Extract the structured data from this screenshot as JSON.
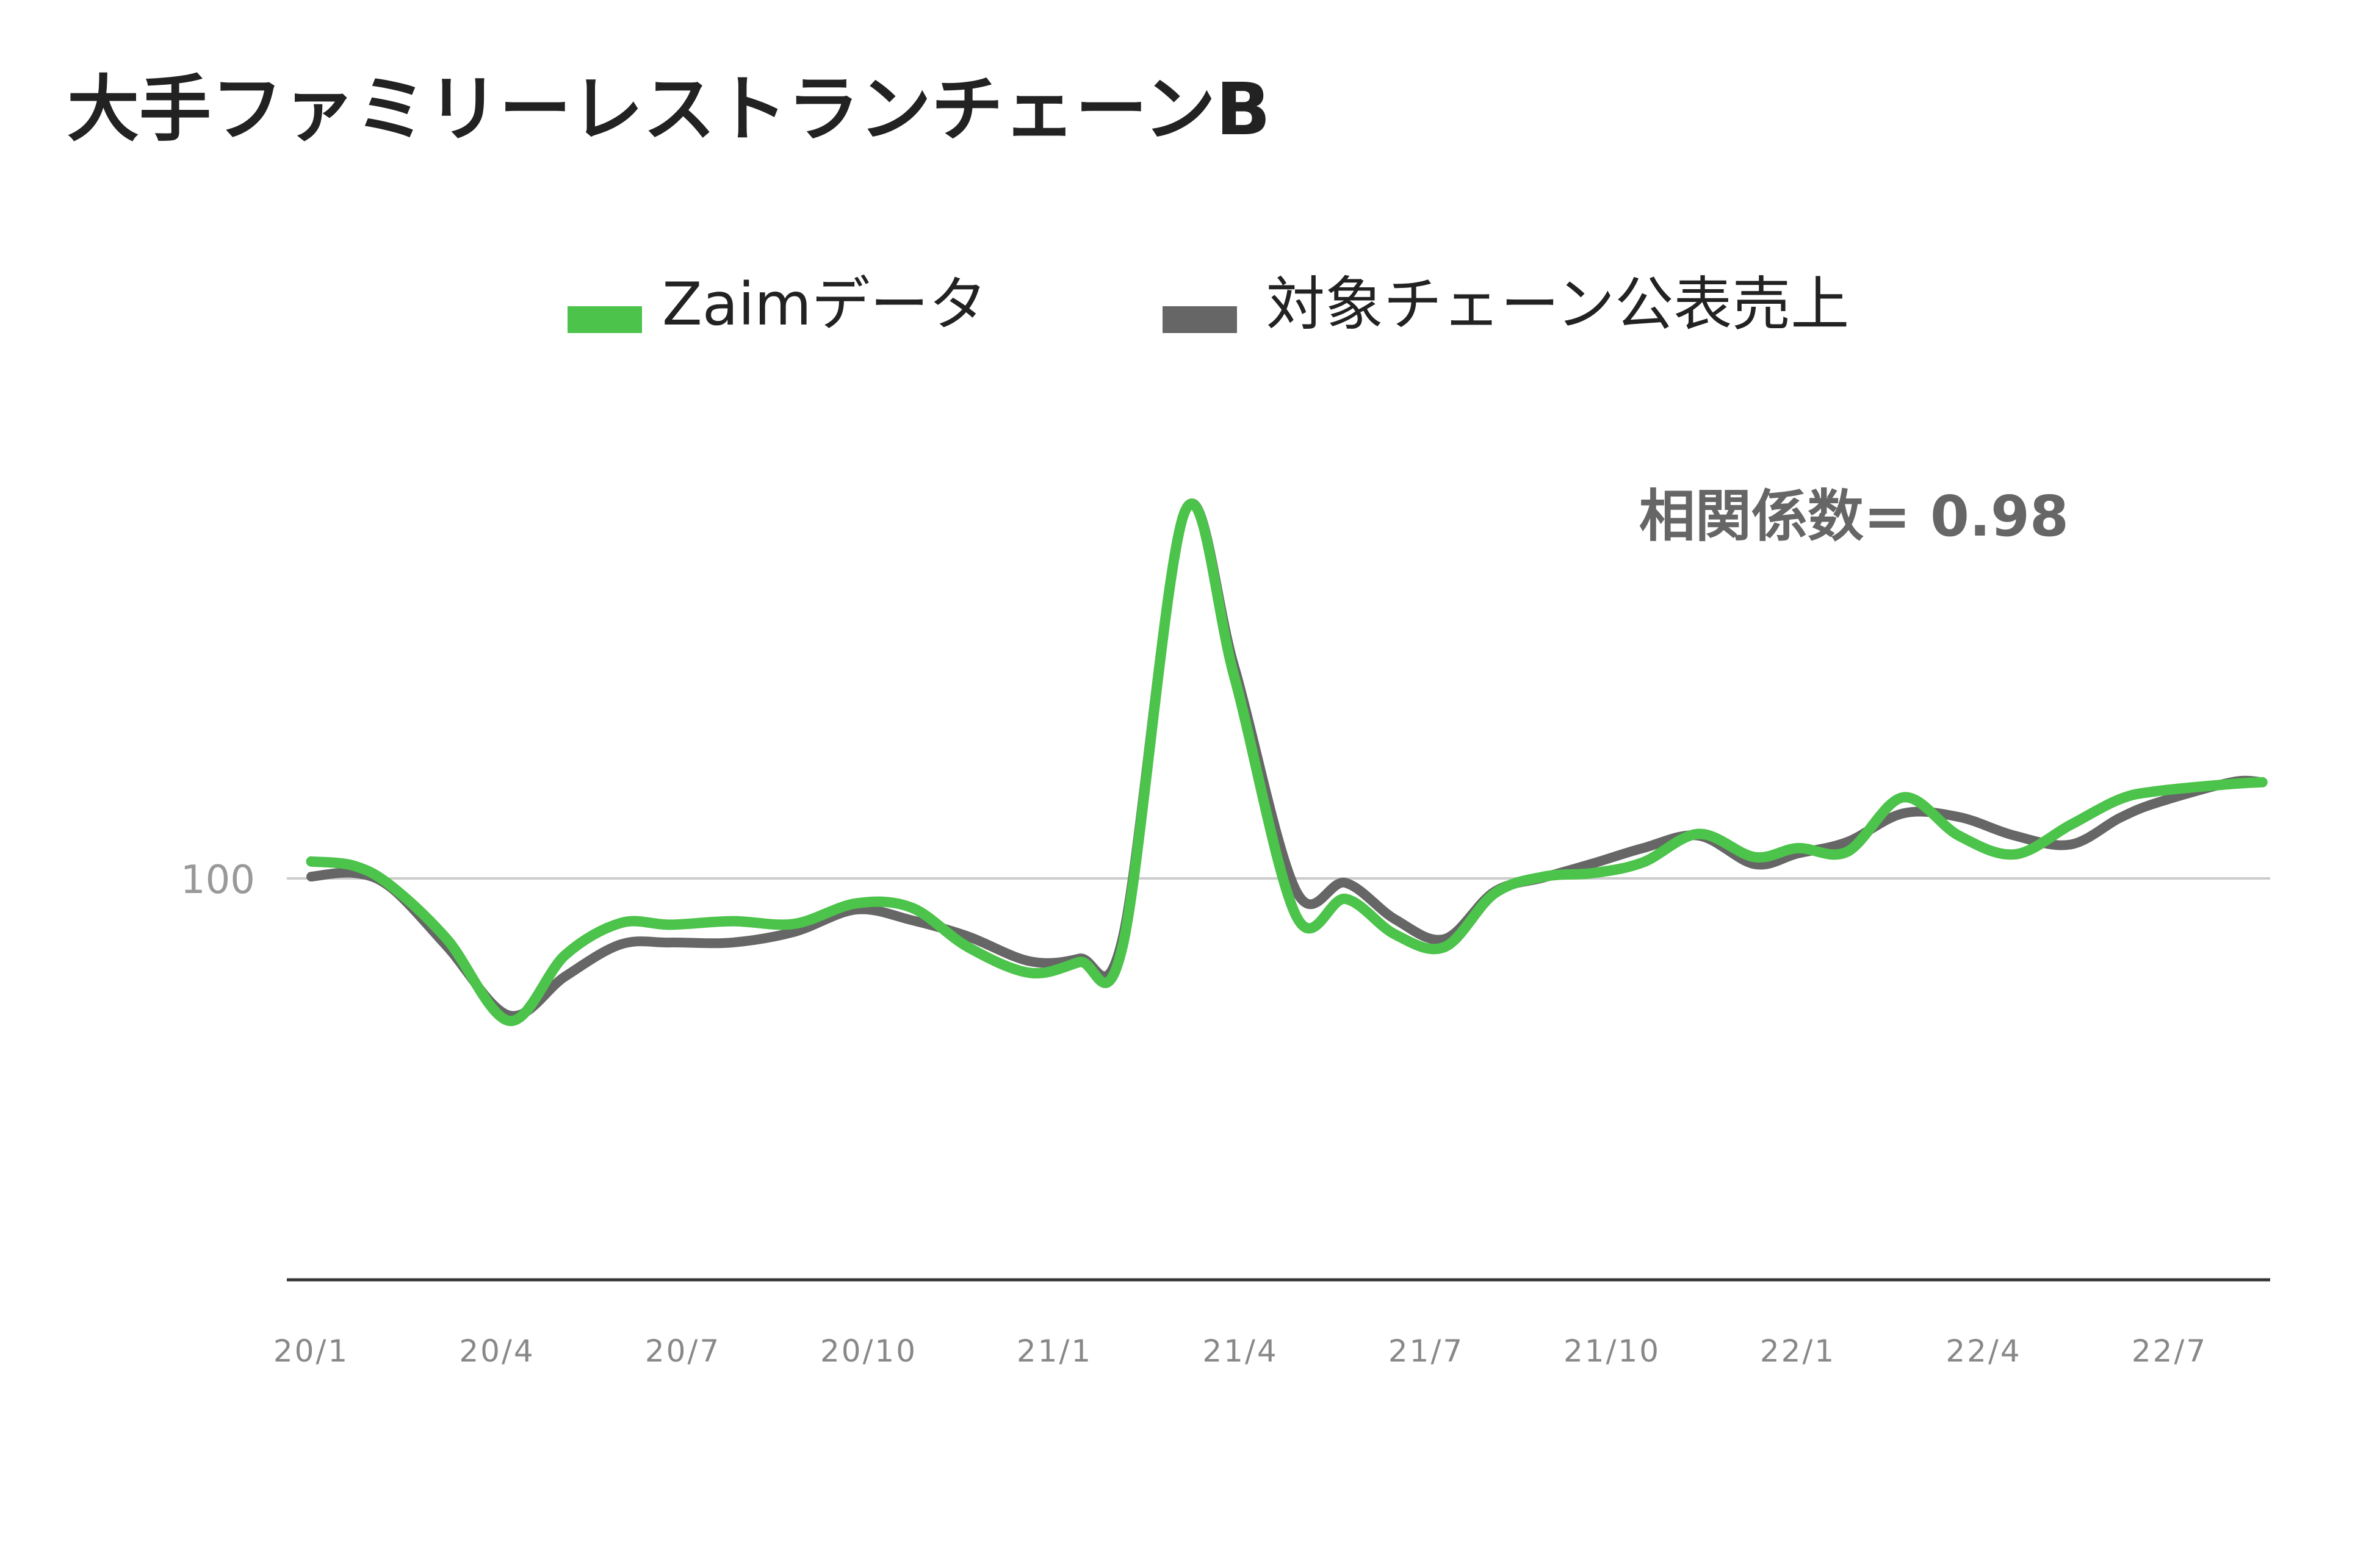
{
  "chart_data": {
    "type": "line",
    "title": "大手ファミリーレストランチェーンB",
    "annotation": "相関係数= 0.98",
    "xlabel": "",
    "ylabel": "",
    "ylim": [
      60,
      155
    ],
    "grid": false,
    "reference_line": {
      "y": 100,
      "label": "100"
    },
    "legend_position": "top-center",
    "x_ticks": [
      {
        "label": "20/1",
        "x": 0
      },
      {
        "label": "20/4",
        "x": 3
      },
      {
        "label": "20/7",
        "x": 6
      },
      {
        "label": "20/10",
        "x": 9
      },
      {
        "label": "21/1",
        "x": 12
      },
      {
        "label": "21/4",
        "x": 15
      },
      {
        "label": "21/7",
        "x": 18
      },
      {
        "label": "21/10",
        "x": 21
      },
      {
        "label": "22/1",
        "x": 24
      },
      {
        "label": "22/4",
        "x": 27
      },
      {
        "label": "22/7",
        "x": 30
      }
    ],
    "series": [
      {
        "name": "Zaimデータ",
        "color": "#4cc34a",
        "x": [
          0,
          0.7,
          1.3,
          2.2,
          3.2,
          4.1,
          5.0,
          5.8,
          6.8,
          7.8,
          8.8,
          9.7,
          10.6,
          11.6,
          12.4,
          13.1,
          14.1,
          14.9,
          15.9,
          16.7,
          17.5,
          18.3,
          19.1,
          19.9,
          20.7,
          21.5,
          22.4,
          23.3,
          24.0,
          24.8,
          25.7,
          26.6,
          27.5,
          28.4,
          29.2,
          29.8,
          31.0,
          31.5
        ],
        "values": [
          101.9,
          101.4,
          99.1,
          93.1,
          84.0,
          91.4,
          95.0,
          94.8,
          95.2,
          94.9,
          97.2,
          96.7,
          92.3,
          89.4,
          90.6,
          92.4,
          141.1,
          122.7,
          95.8,
          97.7,
          93.7,
          92.3,
          98.3,
          100.2,
          100.6,
          101.8,
          105.0,
          102.4,
          103.4,
          103.0,
          109.1,
          104.8,
          102.7,
          106.0,
          108.9,
          109.8,
          110.6,
          110.8
        ]
      },
      {
        "name": "対象チェーン公表売上",
        "color": "#666666",
        "x": [
          0,
          0.7,
          1.3,
          2.2,
          3.2,
          4.1,
          5.0,
          5.8,
          6.8,
          7.8,
          8.8,
          9.7,
          10.6,
          11.6,
          12.4,
          13.1,
          14.1,
          14.9,
          15.9,
          16.7,
          17.5,
          18.3,
          19.1,
          19.9,
          20.7,
          21.5,
          22.4,
          23.3,
          24.0,
          24.8,
          25.7,
          26.6,
          27.5,
          28.4,
          29.2,
          29.8,
          31.0,
          31.5
        ],
        "values": [
          100.2,
          100.6,
          98.9,
          92.3,
          84.6,
          89.0,
          92.6,
          92.8,
          92.8,
          94.0,
          96.5,
          95.3,
          93.5,
          90.7,
          91.0,
          93.3,
          141.1,
          123.8,
          98.6,
          99.5,
          95.4,
          93.2,
          98.5,
          100.1,
          101.7,
          103.4,
          104.8,
          101.6,
          102.8,
          104.1,
          107.3,
          106.9,
          104.8,
          103.8,
          106.8,
          108.5,
          110.8,
          110.8
        ]
      }
    ]
  }
}
